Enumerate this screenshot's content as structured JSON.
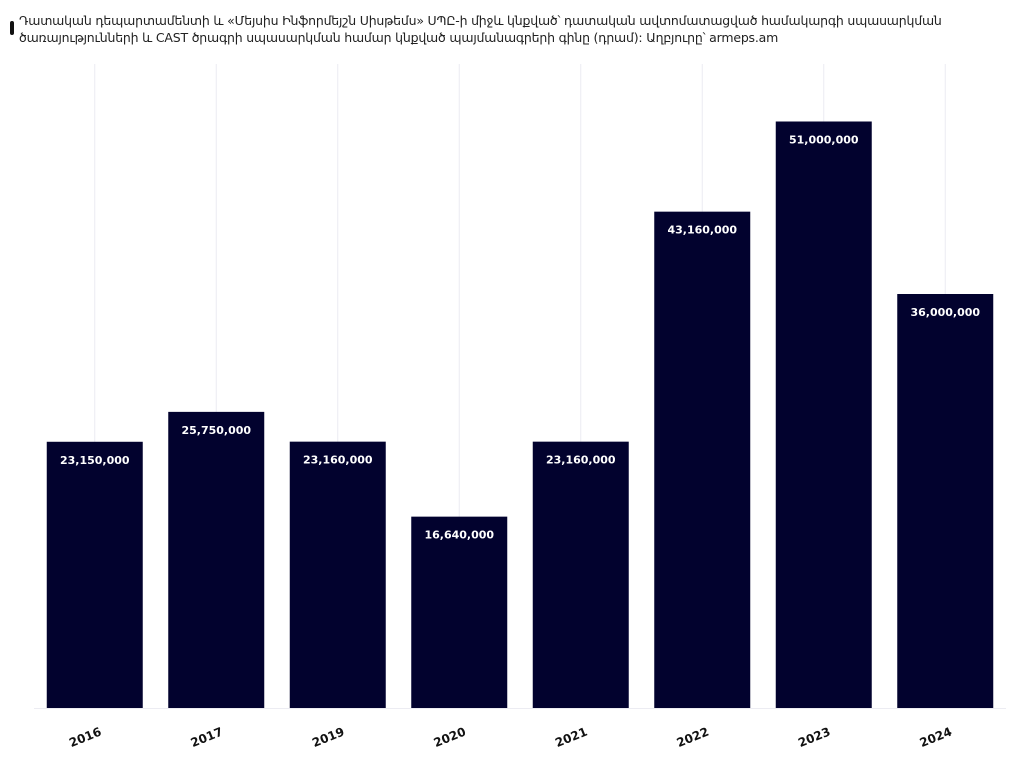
{
  "title": "Դատական դեպարտամենտի և «Մեյսիս Ինֆորմեյշն Սիսթեմս» ՍՊԸ-ի միջև կնքված՝ դատական ավտոմատացված համակարգի սպասարկման ծառայությունների և CAST ծրագրի սպասարկման համար կնքված պայմանագրերի գինը (դրամ): Աղբյուրը՝ armeps.am",
  "colors": {
    "bar": "#02022e",
    "grid": "#ececf2",
    "label": "#ffffff",
    "axis_text": "#111111"
  },
  "chart_data": {
    "type": "bar",
    "categories": [
      "2016",
      "2017",
      "2019",
      "2020",
      "2021",
      "2022",
      "2023",
      "2024"
    ],
    "values": [
      23150000,
      25750000,
      23160000,
      16640000,
      23160000,
      43160000,
      51000000,
      36000000
    ],
    "value_labels": [
      "23,150,000",
      "25,750,000",
      "23,160,000",
      "16,640,000",
      "23,160,000",
      "43,160,000",
      "51,000,000",
      "36,000,000"
    ],
    "ylim": [
      0,
      56000000
    ],
    "grid": "vertical",
    "legend": "none",
    "xlabel": "",
    "ylabel": ""
  }
}
